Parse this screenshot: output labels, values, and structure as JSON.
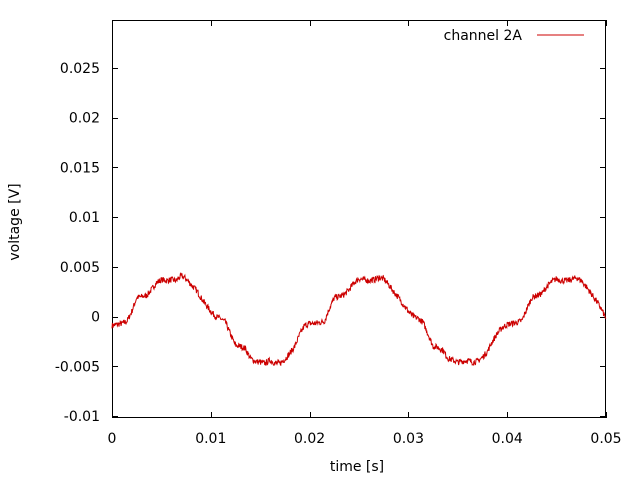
{
  "chart_data": {
    "type": "line",
    "xlabel": "time [s]",
    "ylabel": "voltage [V]",
    "xlim": [
      0,
      0.05
    ],
    "ylim": [
      -0.0102,
      0.0298
    ],
    "x_ticks": [
      0,
      0.01,
      0.02,
      0.03,
      0.04,
      0.05
    ],
    "x_tick_labels": [
      "0",
      "0.01",
      "0.02",
      "0.03",
      "0.04",
      "0.05"
    ],
    "y_ticks": [
      -0.01,
      -0.005,
      0,
      0.005,
      0.01,
      0.015,
      0.02,
      0.025
    ],
    "y_tick_labels": [
      "-0.01",
      "-0.005",
      "0",
      "0.005",
      "0.01",
      "0.015",
      "0.02",
      "0.025"
    ],
    "grid": false,
    "legend_position": "top-right",
    "series": [
      {
        "name": "channel 2A",
        "color": "#cc0000",
        "x": [
          0,
          0.0005,
          0.001,
          0.0015,
          0.002,
          0.0025,
          0.003,
          0.0035,
          0.004,
          0.0045,
          0.005,
          0.0055,
          0.006,
          0.0065,
          0.007,
          0.0075,
          0.008,
          0.0085,
          0.009,
          0.0095,
          0.01,
          0.0105,
          0.011,
          0.0115,
          0.012,
          0.0125,
          0.013,
          0.0135,
          0.014,
          0.0145,
          0.015,
          0.0155,
          0.016,
          0.0165,
          0.017,
          0.0175,
          0.018,
          0.0185,
          0.019,
          0.0195,
          0.02,
          0.0205,
          0.021,
          0.0215,
          0.022,
          0.0225,
          0.023,
          0.0235,
          0.024,
          0.0245,
          0.025,
          0.0255,
          0.026,
          0.0265,
          0.027,
          0.0275,
          0.028,
          0.0285,
          0.029,
          0.0295,
          0.03,
          0.0305,
          0.031,
          0.0315,
          0.032,
          0.0325,
          0.033,
          0.0335,
          0.034,
          0.0345,
          0.035,
          0.0355,
          0.036,
          0.0365,
          0.037,
          0.0375,
          0.038,
          0.0385,
          0.039,
          0.0395,
          0.04,
          0.0405,
          0.041,
          0.0415,
          0.042,
          0.0425,
          0.043,
          0.0435,
          0.044,
          0.0445,
          0.045,
          0.0455,
          0.046,
          0.0465,
          0.047,
          0.0475,
          0.048,
          0.0485,
          0.049,
          0.0495,
          0.05
        ],
        "values": [
          -0.0009,
          -0.0008,
          -0.0007,
          -0.0005,
          0.0005,
          0.0019,
          0.002,
          0.0021,
          0.0027,
          0.0034,
          0.0037,
          0.0036,
          0.0037,
          0.0036,
          0.0041,
          0.0038,
          0.0032,
          0.0027,
          0.0019,
          0.0012,
          0.0005,
          0.0,
          -0.0002,
          -0.0006,
          -0.0018,
          -0.0029,
          -0.003,
          -0.0032,
          -0.0042,
          -0.0045,
          -0.0046,
          -0.0047,
          -0.0044,
          -0.0047,
          -0.0047,
          -0.0043,
          -0.0037,
          -0.003,
          -0.0018,
          -0.0009,
          -0.0007,
          -0.0007,
          -0.0006,
          -0.0005,
          0.0008,
          0.0019,
          0.002,
          0.0022,
          0.0027,
          0.0034,
          0.0038,
          0.0037,
          0.0036,
          0.0037,
          0.0039,
          0.0038,
          0.0032,
          0.0025,
          0.0019,
          0.0012,
          0.0005,
          0.0,
          -0.0002,
          -0.0006,
          -0.0018,
          -0.003,
          -0.0031,
          -0.0034,
          -0.0042,
          -0.0044,
          -0.0046,
          -0.0045,
          -0.0044,
          -0.0046,
          -0.0045,
          -0.0041,
          -0.0035,
          -0.0025,
          -0.0017,
          -0.0011,
          -0.0008,
          -0.0007,
          -0.0006,
          -0.0004,
          0.0008,
          0.0019,
          0.0021,
          0.0023,
          0.003,
          0.0035,
          0.0038,
          0.0036,
          0.0036,
          0.0037,
          0.0039,
          0.0036,
          0.003,
          0.0023,
          0.0016,
          0.0008,
          -0.0002
        ]
      }
    ]
  }
}
